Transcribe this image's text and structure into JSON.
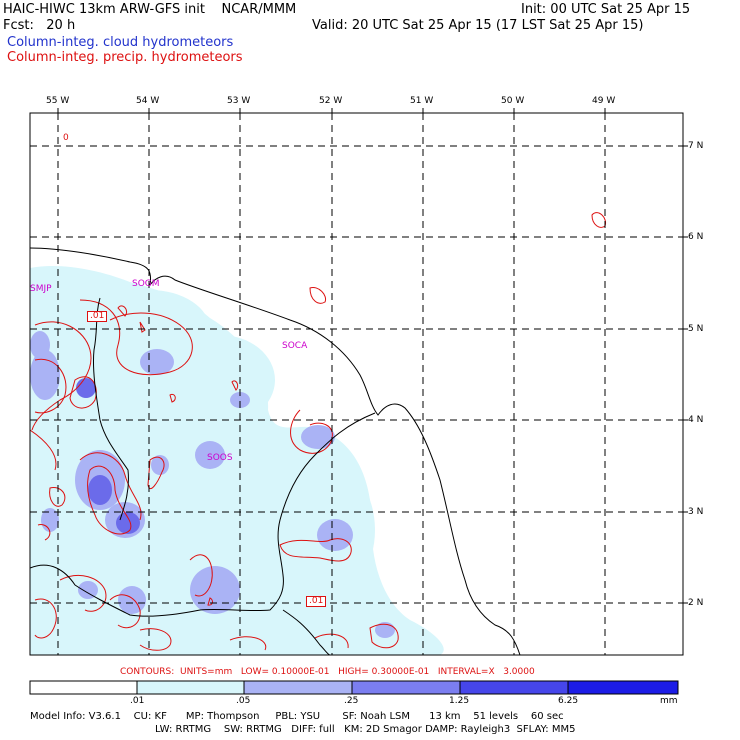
{
  "header": {
    "title": "HAIC-HIWC 13km ARW-GFS init    NCAR/MMM",
    "fcst": "Fcst:   20 h",
    "init": "Init: 00 UTC Sat 25 Apr 15",
    "valid": "Valid: 20 UTC Sat 25 Apr 15 (17 LST Sat 25 Apr 15)",
    "field_cloud": "Column-integ. cloud hydrometeors",
    "field_precip": "Column-integ. precip. hydrometeors"
  },
  "map": {
    "lon_labels": [
      "55 W",
      "54 W",
      "53 W",
      "52 W",
      "51 W",
      "50 W",
      "49 W"
    ],
    "lat_labels": [
      "7 N",
      "6 N",
      "5 N",
      "4 N",
      "3 N",
      "2 N"
    ],
    "stations": [
      "SMJP",
      "SOGM",
      "SOCA",
      "SOOS"
    ],
    "contour_boxes": [
      ".01",
      ".01"
    ],
    "misc_contour_label": "0",
    "colors": {
      "fill_light": "#d8f6fb",
      "fill_mid": "#aab3f5",
      "fill_dark": "#6b6bea",
      "fill_darkest": "#2323e6",
      "contour": "#dd1111",
      "coast": "#000000",
      "station": "#cc00cc"
    }
  },
  "contour_info": "CONTOURS:  UNITS=mm   LOW= 0.10000E-01   HIGH= 0.30000E-01   INTERVAL=X   3.0000",
  "colorbar": {
    "ticks": [
      ".01",
      ".05",
      ".25",
      "1.25",
      "6.25"
    ],
    "unit": "mm",
    "colors": [
      "#ffffff",
      "#d8f6fb",
      "#aab3f5",
      "#7b7ef0",
      "#4646ea",
      "#1c1ce6"
    ]
  },
  "model_info": {
    "line1": "Model Info: V3.6.1    CU: KF      MP: Thompson     PBL: YSU       SF: Noah LSM      13 km    51 levels    60 sec",
    "line2": "LW: RRTMG    SW: RRTMG   DIFF: full   KM: 2D Smagor DAMP: Rayleigh3  SFLAY: MM5"
  }
}
